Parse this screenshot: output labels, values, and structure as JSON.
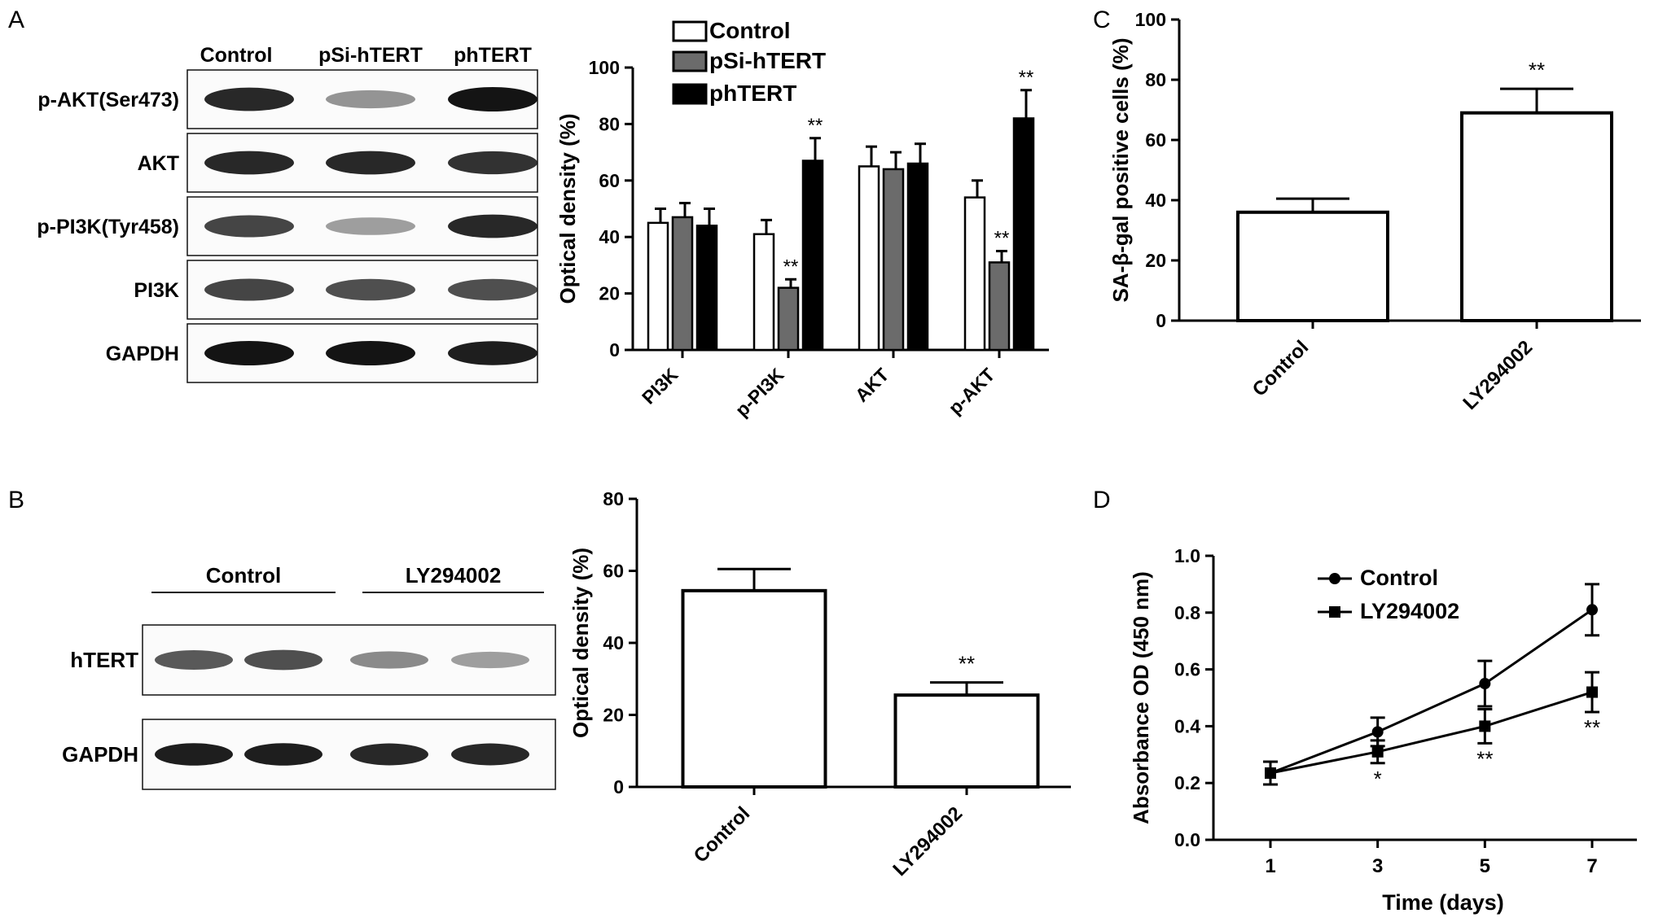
{
  "panels": {
    "A": {
      "letter": "A",
      "blot": {
        "lanes": [
          "Control",
          "pSi-hTERT",
          "phTERT"
        ],
        "rows": [
          {
            "label": "p-AKT(Ser473)",
            "intensity": [
              0.9,
              0.35,
              1.0
            ]
          },
          {
            "label": "AKT",
            "intensity": [
              0.9,
              0.9,
              0.85
            ]
          },
          {
            "label": "p-PI3K(Tyr458)",
            "intensity": [
              0.75,
              0.3,
              0.9
            ]
          },
          {
            "label": "PI3K",
            "intensity": [
              0.75,
              0.7,
              0.7
            ]
          },
          {
            "label": "GAPDH",
            "intensity": [
              1.0,
              1.0,
              0.95
            ]
          }
        ]
      }
    },
    "B": {
      "letter": "B",
      "blot": {
        "groups": [
          "Control",
          "LY294002"
        ],
        "rows": [
          {
            "label": "hTERT",
            "intensity": [
              0.65,
              0.7,
              0.4,
              0.3
            ]
          },
          {
            "label": "GAPDH",
            "intensity": [
              0.95,
              0.95,
              0.9,
              0.9
            ]
          }
        ]
      }
    },
    "C": {
      "letter": "C"
    },
    "D": {
      "letter": "D"
    }
  },
  "colors": {
    "control": "#ffffff",
    "psi": "#6b6b6b",
    "ph": "#000000",
    "band": "#141414"
  },
  "chart_data": [
    {
      "id": "A",
      "type": "bar",
      "categories": [
        "PI3K",
        "p-PI3K",
        "AKT",
        "p-AKT"
      ],
      "series": [
        {
          "name": "Control",
          "values": [
            45,
            41,
            65,
            54
          ],
          "errors": [
            5,
            5,
            7,
            6
          ],
          "color": "#ffffff"
        },
        {
          "name": "pSi-hTERT",
          "values": [
            47,
            22,
            64,
            31
          ],
          "errors": [
            5,
            3,
            6,
            4
          ],
          "color": "#6b6b6b"
        },
        {
          "name": "phTERT",
          "values": [
            44,
            67,
            66,
            82
          ],
          "errors": [
            6,
            8,
            7,
            10
          ],
          "color": "#000000"
        }
      ],
      "annotations": [
        {
          "category": "p-PI3K",
          "series": "pSi-hTERT",
          "text": "**"
        },
        {
          "category": "p-PI3K",
          "series": "phTERT",
          "text": "**"
        },
        {
          "category": "p-AKT",
          "series": "pSi-hTERT",
          "text": "**"
        },
        {
          "category": "p-AKT",
          "series": "phTERT",
          "text": "**"
        }
      ],
      "ylabel": "Optical density (%)",
      "ylim": [
        0,
        100
      ],
      "yticks": [
        0,
        20,
        40,
        60,
        80,
        100
      ],
      "legend": "top"
    },
    {
      "id": "B",
      "type": "bar",
      "categories": [
        "Control",
        "LY294002"
      ],
      "values": [
        54.5,
        25.5
      ],
      "errors": [
        6,
        3.5
      ],
      "annotations": [
        {
          "category": "LY294002",
          "text": "**"
        }
      ],
      "ylabel": "Optical density (%)",
      "ylim": [
        0,
        80
      ],
      "yticks": [
        0,
        20,
        40,
        60,
        80
      ]
    },
    {
      "id": "C",
      "type": "bar",
      "categories": [
        "Control",
        "LY294002"
      ],
      "values": [
        36,
        69
      ],
      "errors": [
        4.5,
        8
      ],
      "annotations": [
        {
          "category": "LY294002",
          "text": "**"
        }
      ],
      "ylabel": "SA-β-gal positive cells (%)",
      "ylim": [
        0,
        100
      ],
      "yticks": [
        0,
        20,
        40,
        60,
        80,
        100
      ]
    },
    {
      "id": "D",
      "type": "line",
      "x": [
        1,
        3,
        5,
        7
      ],
      "series": [
        {
          "name": "Control",
          "marker": "circle",
          "values": [
            0.235,
            0.38,
            0.55,
            0.81
          ],
          "errors": [
            0.04,
            0.05,
            0.08,
            0.09
          ]
        },
        {
          "name": "LY294002",
          "marker": "square",
          "values": [
            0.235,
            0.31,
            0.4,
            0.52
          ],
          "errors": [
            0.04,
            0.04,
            0.06,
            0.07
          ]
        }
      ],
      "annotations": [
        {
          "x": 3,
          "text": "*"
        },
        {
          "x": 5,
          "text": "**"
        },
        {
          "x": 7,
          "text": "**"
        }
      ],
      "xlabel": "Time (days)",
      "ylabel": "Absorbance OD (450 nm)",
      "ylim": [
        0.0,
        1.0
      ],
      "yticks": [
        "0.0",
        "0.2",
        "0.4",
        "0.6",
        "0.8",
        "1.0"
      ],
      "xticks": [
        "1",
        "3",
        "5",
        "7"
      ],
      "legend": "top-left"
    }
  ]
}
